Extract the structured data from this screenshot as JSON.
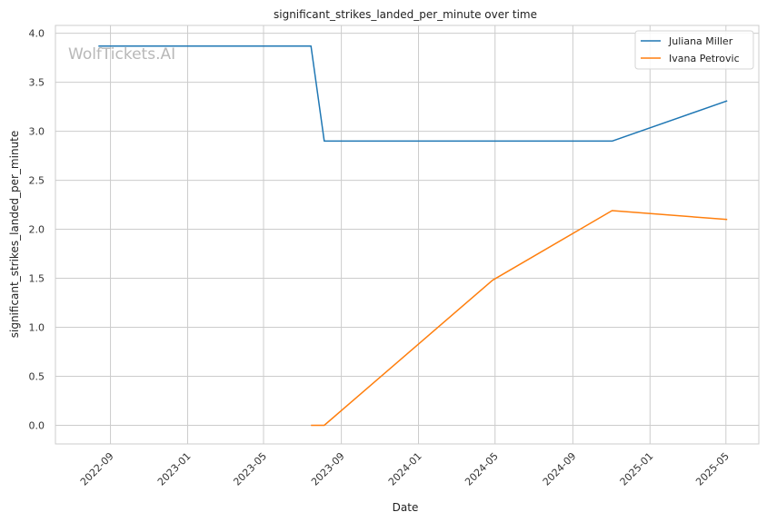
{
  "chart_data": {
    "type": "line",
    "title": "significant_strikes_landed_per_minute over time",
    "xlabel": "Date",
    "ylabel": "significant_strikes_landed_per_minute",
    "watermark": "WolfTickets.AI",
    "ylim": [
      -0.19,
      4.08
    ],
    "xlim": [
      "2022-06-06",
      "2025-06-22"
    ],
    "y_ticks": [
      0.0,
      0.5,
      1.0,
      1.5,
      2.0,
      2.5,
      3.0,
      3.5,
      4.0
    ],
    "y_tick_labels": [
      "0.0",
      "0.5",
      "1.0",
      "1.5",
      "2.0",
      "2.5",
      "3.0",
      "3.5",
      "4.0"
    ],
    "x_ticks": [
      "2022-09-01",
      "2023-01-01",
      "2023-05-01",
      "2023-09-01",
      "2024-01-01",
      "2024-05-01",
      "2024-09-01",
      "2025-01-01",
      "2025-05-01"
    ],
    "x_tick_labels": [
      "2022-09",
      "2023-01",
      "2023-05",
      "2023-09",
      "2024-01",
      "2024-05",
      "2024-09",
      "2025-01",
      "2025-05"
    ],
    "grid": true,
    "legend_position": "top-right",
    "series": [
      {
        "name": "Juliana Miller",
        "color": "#1f77b4",
        "x": [
          "2022-08-13",
          "2023-07-15",
          "2023-08-05",
          "2024-11-02",
          "2025-05-03"
        ],
        "y": [
          3.87,
          3.87,
          2.9,
          2.9,
          3.31
        ]
      },
      {
        "name": "Ivana Petrovic",
        "color": "#ff7f0e",
        "x": [
          "2023-07-15",
          "2023-08-05",
          "2024-04-27",
          "2024-11-02",
          "2025-05-03"
        ],
        "y": [
          0.0,
          0.0,
          1.48,
          2.19,
          2.1
        ]
      }
    ]
  }
}
